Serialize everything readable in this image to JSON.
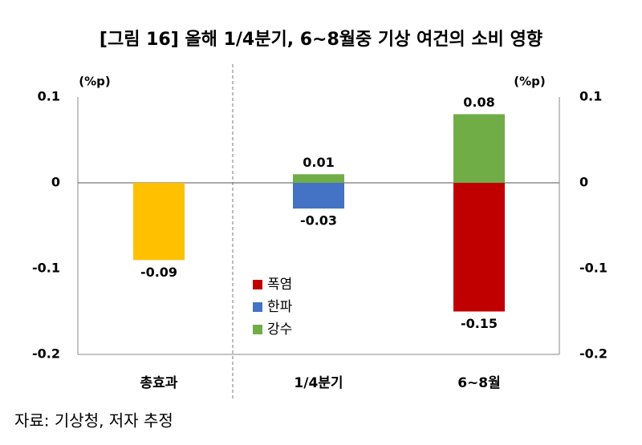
{
  "chart_data": {
    "type": "bar",
    "title": "[그림 16] 올해 1/4분기, 6~8월중 기상 여건의 소비 영향",
    "y_unit": "(%p)",
    "y2_unit": "(%p)",
    "categories": [
      "총효과",
      "1/4분기",
      "6~8월"
    ],
    "total": {
      "color": "#ffc000",
      "values": [
        -0.09,
        null,
        null
      ]
    },
    "series": [
      {
        "name": "폭염",
        "color": "#c00000",
        "values": [
          null,
          null,
          -0.15
        ]
      },
      {
        "name": "한파",
        "color": "#4472c4",
        "values": [
          null,
          -0.03,
          null
        ]
      },
      {
        "name": "강수",
        "color": "#70ad47",
        "values": [
          null,
          0.01,
          0.08
        ]
      }
    ],
    "ylim": [
      -0.2,
      0.1
    ],
    "yticks": [
      0.1,
      0,
      -0.1,
      -0.2
    ],
    "y2lim": [
      -0.2,
      0.1
    ],
    "y2ticks": [
      0.1,
      0,
      -0.1,
      -0.2
    ],
    "source": "자료: 기상청, 저자 추정"
  }
}
